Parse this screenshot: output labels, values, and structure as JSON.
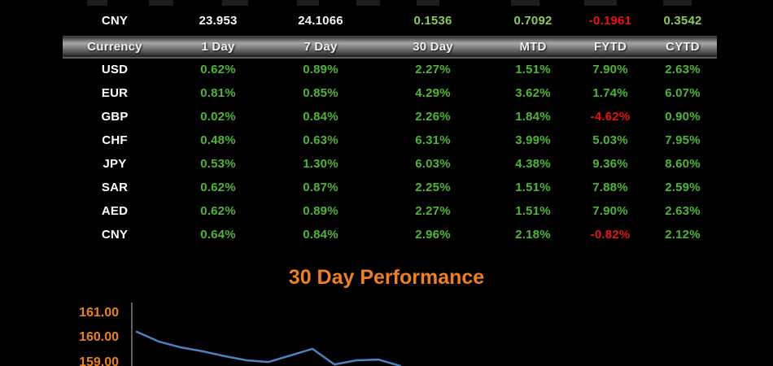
{
  "fx_row": {
    "cells": [
      {
        "text": "CNY",
        "style": "cur"
      },
      {
        "text": "23.953",
        "style": "white"
      },
      {
        "text": "24.1066",
        "style": "white"
      },
      {
        "text": "0.1536",
        "style": "green-light"
      },
      {
        "text": "0.7092",
        "style": "green-light"
      },
      {
        "text": "-0.1961",
        "style": "red"
      },
      {
        "text": "0.3542",
        "style": "green-light"
      }
    ]
  },
  "table": {
    "headers": [
      "Currency",
      "1 Day",
      "7 Day",
      "30 Day",
      "MTD",
      "FYTD",
      "CYTD"
    ],
    "rows": [
      {
        "currency": "USD",
        "values": [
          "0.62%",
          "0.89%",
          "2.27%",
          "1.51%",
          "7.90%",
          "2.63%"
        ]
      },
      {
        "currency": "EUR",
        "values": [
          "0.81%",
          "0.85%",
          "4.29%",
          "3.62%",
          "1.74%",
          "6.07%"
        ]
      },
      {
        "currency": "GBP",
        "values": [
          "0.02%",
          "0.84%",
          "2.26%",
          "1.84%",
          "-4.62%",
          "0.90%"
        ]
      },
      {
        "currency": "CHF",
        "values": [
          "0.48%",
          "0.63%",
          "6.31%",
          "3.99%",
          "5.03%",
          "7.95%"
        ]
      },
      {
        "currency": "JPY",
        "values": [
          "0.53%",
          "1.30%",
          "6.03%",
          "4.38%",
          "9.36%",
          "8.60%"
        ]
      },
      {
        "currency": "SAR",
        "values": [
          "0.62%",
          "0.87%",
          "2.25%",
          "1.51%",
          "7.88%",
          "2.59%"
        ]
      },
      {
        "currency": "AED",
        "values": [
          "0.62%",
          "0.89%",
          "2.27%",
          "1.51%",
          "7.90%",
          "2.63%"
        ]
      },
      {
        "currency": "CNY",
        "values": [
          "0.64%",
          "0.84%",
          "2.96%",
          "2.18%",
          "-0.82%",
          "2.12%"
        ]
      }
    ]
  },
  "chart_data": {
    "type": "line",
    "title": "30 Day Performance",
    "title_color": "#ef7f1f",
    "y_ticks": [
      "161.00",
      "160.00",
      "159.00"
    ],
    "ylim_visible": [
      158.85,
      161.3
    ],
    "grid": false,
    "legend": "none",
    "series": [
      {
        "name": "30 Day Performance",
        "values": [
          160.27,
          159.87,
          159.63,
          159.47,
          159.27,
          159.1,
          159.03,
          159.3,
          159.57,
          158.93,
          159.1,
          159.13,
          158.87
        ]
      }
    ],
    "line_color": "#4f81bd",
    "axis_line_color": "#808080",
    "axis_label_color": "#ea811c"
  },
  "colors": {
    "background": "#000000",
    "positive": "#4fb437",
    "negative": "#e61414",
    "header_text": "#f0f0f0",
    "accent_orange": "#ef7f1f"
  }
}
